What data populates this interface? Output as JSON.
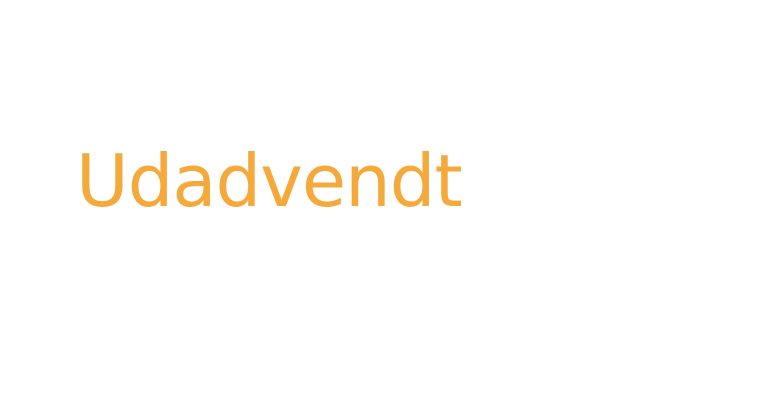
{
  "slide": {
    "headline": "Udadvendt"
  },
  "colors": {
    "background": "#ffffff",
    "accent": "#f5a93a"
  }
}
